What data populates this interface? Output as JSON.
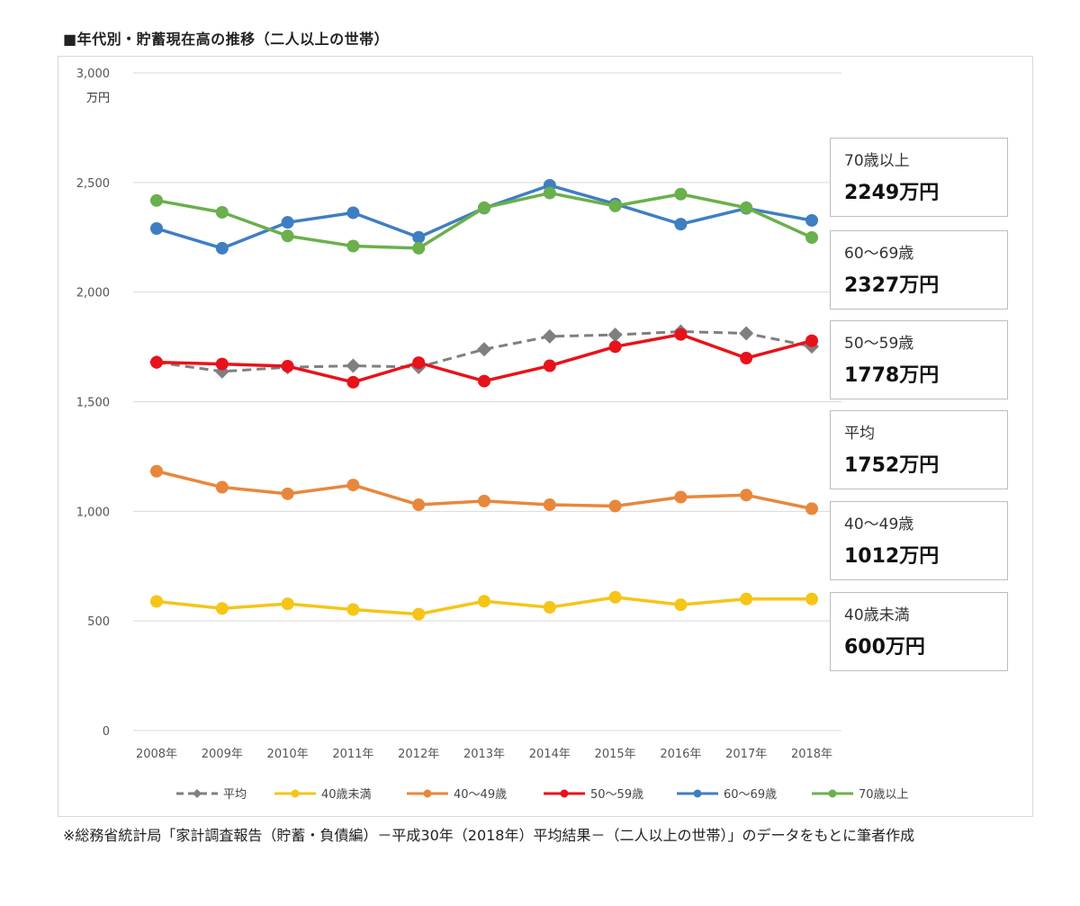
{
  "chart_data": {
    "type": "line",
    "title": "■年代別・貯蓄現在高の推移（二人以上の世帯）",
    "y_unit": "万円",
    "ylim": [
      0,
      3000
    ],
    "y_ticks": [
      "3,000",
      "2,500",
      "2,000",
      "1,500",
      "1,000",
      "500",
      "0"
    ],
    "y_tick_values": [
      3000,
      2500,
      2000,
      1500,
      1000,
      500,
      0
    ],
    "categories": [
      "2008年",
      "2009年",
      "2010年",
      "2011年",
      "2012年",
      "2013年",
      "2014年",
      "2015年",
      "2016年",
      "2017年",
      "2018年"
    ],
    "grid": true,
    "legend_position": "bottom",
    "series": [
      {
        "name": "平均",
        "color": "#7f7f7f",
        "dashed": true,
        "marker": "diamond",
        "values": [
          1680,
          1638,
          1657,
          1664,
          1658,
          1739,
          1798,
          1805,
          1820,
          1812,
          1752
        ]
      },
      {
        "name": "40歳未満",
        "color": "#f5c518",
        "dashed": false,
        "marker": "circle",
        "values": [
          589,
          557,
          578,
          552,
          531,
          590,
          562,
          608,
          574,
          600,
          600
        ]
      },
      {
        "name": "40～49歳",
        "color": "#e8873c",
        "dashed": false,
        "marker": "circle",
        "values": [
          1183,
          1110,
          1080,
          1120,
          1030,
          1047,
          1030,
          1024,
          1065,
          1074,
          1012
        ]
      },
      {
        "name": "50～59歳",
        "color": "#e8121b",
        "dashed": false,
        "marker": "circle",
        "values": [
          1680,
          1672,
          1662,
          1589,
          1678,
          1594,
          1664,
          1751,
          1807,
          1699,
          1778
        ]
      },
      {
        "name": "60～69歳",
        "color": "#3f7ec3",
        "dashed": false,
        "marker": "circle",
        "values": [
          2290,
          2200,
          2318,
          2362,
          2250,
          2383,
          2487,
          2402,
          2310,
          2382,
          2327
        ]
      },
      {
        "name": "70歳以上",
        "color": "#6ab04c",
        "dashed": false,
        "marker": "circle",
        "values": [
          2418,
          2364,
          2256,
          2210,
          2200,
          2385,
          2452,
          2393,
          2447,
          2385,
          2249
        ]
      }
    ]
  },
  "callouts": [
    {
      "label": "70歳以上",
      "value": "2249万円"
    },
    {
      "label": "60～69歳",
      "value": "2327万円"
    },
    {
      "label": "50～59歳",
      "value": "1778万円"
    },
    {
      "label": "平均",
      "value": "1752万円"
    },
    {
      "label": "40～49歳",
      "value": "1012万円"
    },
    {
      "label": "40歳未満",
      "value": "600万円"
    }
  ],
  "source_note": "※総務省統計局「家計調査報告（貯蓄・負債編）－平成30年（2018年）平均結果－（二人以上の世帯）」のデータをもとに筆者作成"
}
